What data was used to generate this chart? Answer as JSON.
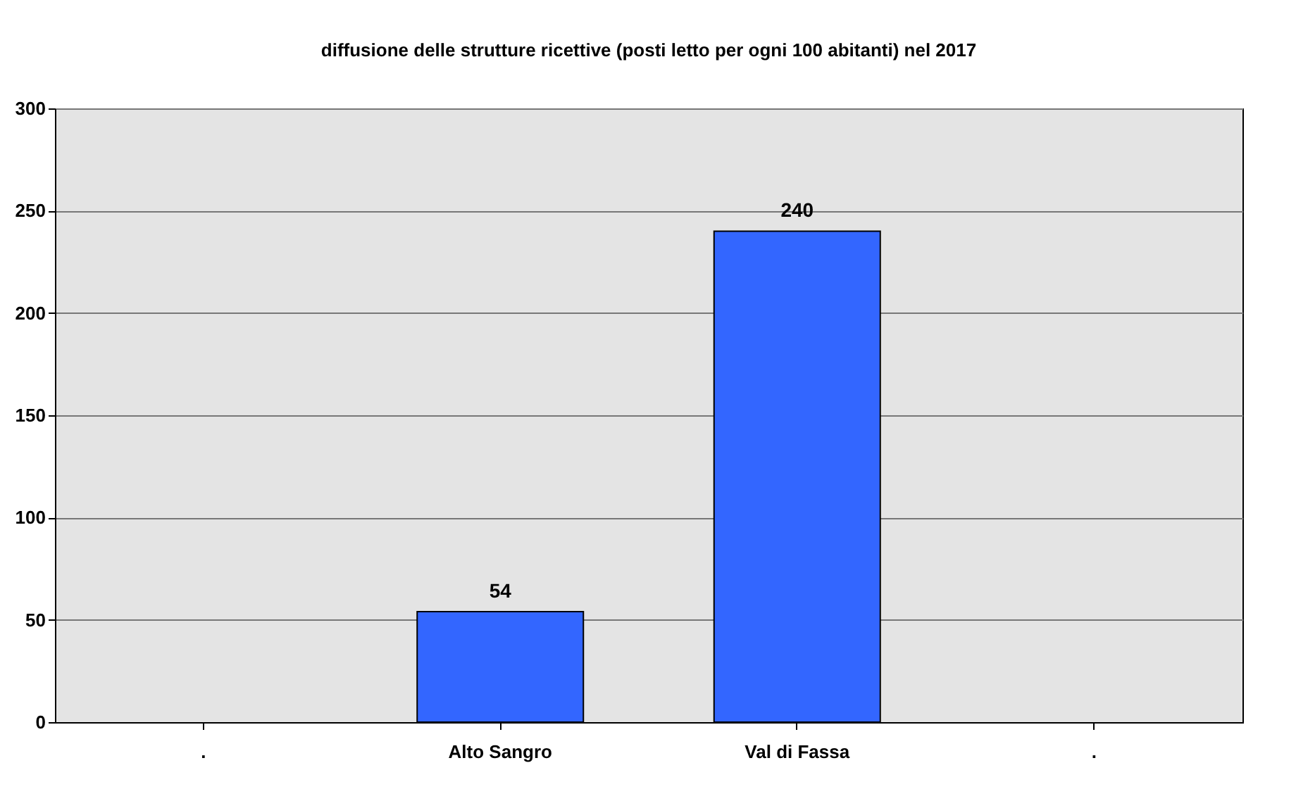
{
  "chart_data": {
    "type": "bar",
    "title": "diffusione delle strutture ricettive (posti letto per ogni 100 abitanti) nel 2017",
    "categories": [
      ".",
      "Alto Sangro",
      "Val di Fassa",
      "."
    ],
    "values": [
      null,
      54,
      240,
      null
    ],
    "color": "#3366ff",
    "ylim": [
      0,
      300
    ],
    "yticks": [
      0,
      50,
      100,
      150,
      200,
      250,
      300
    ],
    "grid": "y",
    "data_labels": true
  }
}
